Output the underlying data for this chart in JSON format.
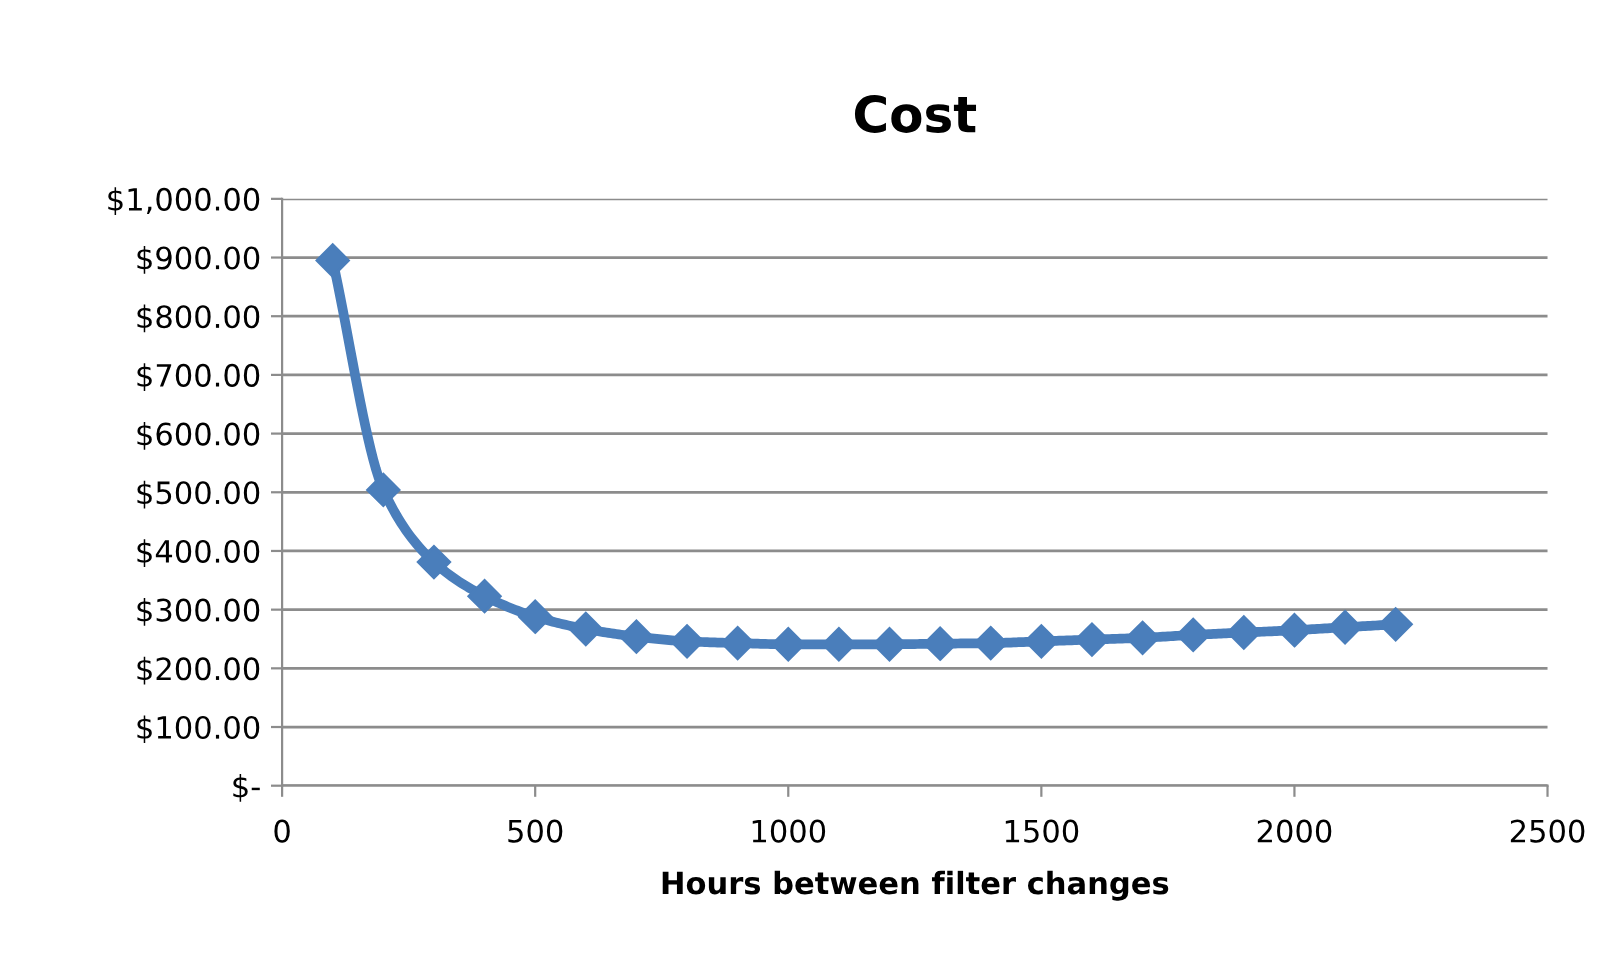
{
  "chart_data": {
    "type": "line",
    "title": "Cost",
    "xlabel": "Hours between filter changes",
    "x": [
      100,
      200,
      300,
      400,
      500,
      600,
      700,
      800,
      900,
      1000,
      1100,
      1200,
      1300,
      1400,
      1500,
      1600,
      1700,
      1800,
      1900,
      2000,
      2100,
      2200
    ],
    "series": [
      {
        "color": "#4a7ebb",
        "values": [
          895,
          504,
          381,
          323,
          288,
          267,
          254,
          246,
          243,
          241,
          241,
          241,
          242,
          243,
          246,
          249,
          252,
          257,
          261,
          265,
          270,
          275
        ]
      }
    ],
    "xlim": [
      0,
      2500
    ],
    "xticks": [
      0,
      500,
      1000,
      1500,
      2000,
      2500
    ],
    "ylim": [
      0,
      1000
    ],
    "yticks": [
      {
        "value": 0,
        "label": "$-"
      },
      {
        "value": 100,
        "label": "$100.00"
      },
      {
        "value": 200,
        "label": "$200.00"
      },
      {
        "value": 300,
        "label": "$300.00"
      },
      {
        "value": 400,
        "label": "$400.00"
      },
      {
        "value": 500,
        "label": "$500.00"
      },
      {
        "value": 600,
        "label": "$600.00"
      },
      {
        "value": 700,
        "label": "$700.00"
      },
      {
        "value": 800,
        "label": "$800.00"
      },
      {
        "value": 900,
        "label": "$900.00"
      },
      {
        "value": 1000,
        "label": "$1,000.00"
      }
    ],
    "grid": "y",
    "marker": "diamond",
    "line_style": "solid",
    "legend": false
  }
}
